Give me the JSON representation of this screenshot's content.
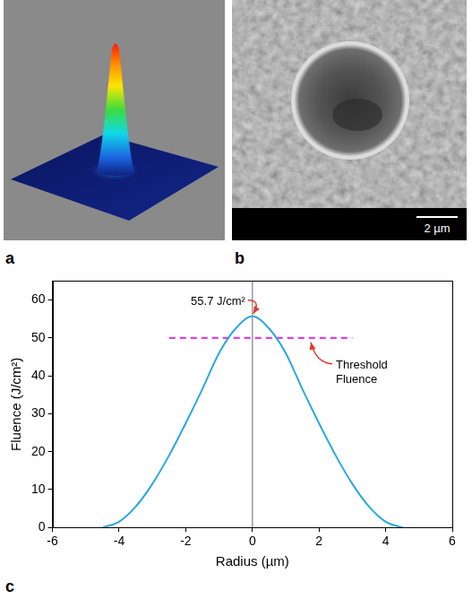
{
  "panel_labels": [
    "a",
    "b",
    "c"
  ],
  "scale_bar": "2 µm",
  "chart_data": {
    "type": "line",
    "x_label": "Radius (µm)",
    "y_label": "Fluence (J/cm²)",
    "x": [
      -4.5,
      -4,
      -3.5,
      -3,
      -2.5,
      -2,
      -1.5,
      -1,
      -0.5,
      0,
      0.5,
      1,
      1.5,
      2,
      2.5,
      3,
      3.5,
      4,
      4.5
    ],
    "values": [
      0,
      1.5,
      5.5,
      11.5,
      19,
      27.5,
      36.5,
      46,
      52.5,
      55.7,
      52.5,
      46,
      36.5,
      27.5,
      19,
      11.5,
      5.5,
      1.5,
      0
    ],
    "color": "#29a8e0",
    "xlim": [
      -6,
      6
    ],
    "xticks": [
      -6,
      -4,
      -2,
      0,
      2,
      4,
      6
    ],
    "ylim": [
      0,
      65
    ],
    "yticks": [
      0,
      10,
      20,
      30,
      40,
      50,
      60
    ],
    "grid": false,
    "threshold": {
      "x": [
        -2.5,
        3
      ],
      "values": [
        50,
        50
      ],
      "color": "#e23ee6",
      "line_style": "dashed"
    },
    "center_line": {
      "x": [
        0,
        0
      ],
      "values": [
        0,
        65
      ],
      "color": "#9a9a9a"
    },
    "annotations": [
      {
        "text": "55.7 J/cm²",
        "x": 0,
        "y": 55.7,
        "color": "#e23a2a"
      },
      {
        "text": "Threshold Fluence",
        "x": 1.7,
        "y": 50,
        "color": "#e23a2a"
      }
    ]
  }
}
